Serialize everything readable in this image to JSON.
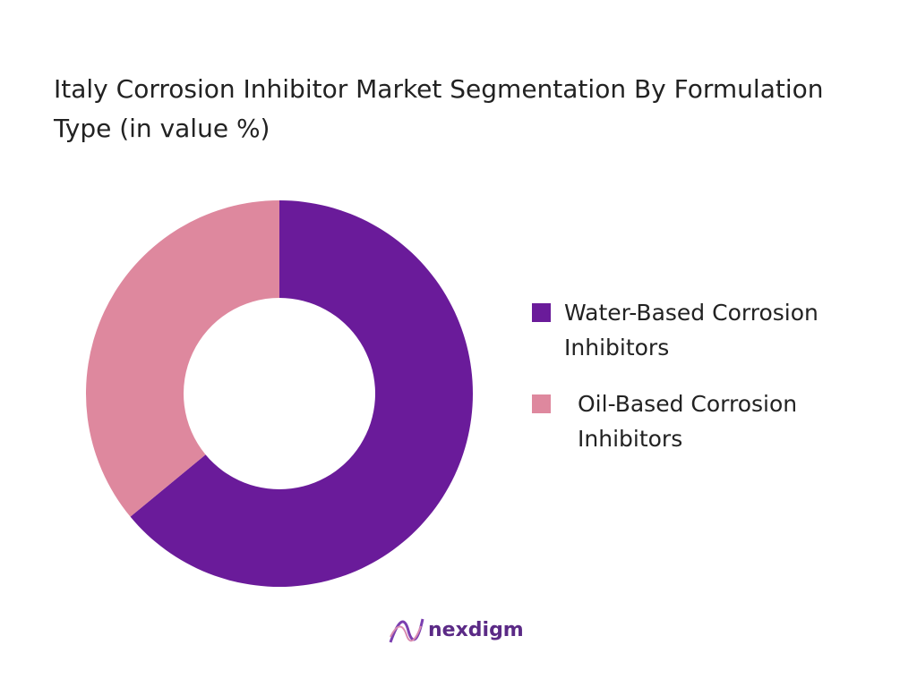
{
  "chart_data": {
    "type": "donut",
    "title": "Italy Corrosion Inhibitor Market Segmentation By Formulation Type (in value %)",
    "categories": [
      "Water-Based Corrosion Inhibitors",
      "Oil-Based Corrosion Inhibitors"
    ],
    "values": [
      64,
      36
    ],
    "colors": [
      "#6a1b9a",
      "#de889e"
    ],
    "legend": "right"
  },
  "brand": "nexdigm"
}
